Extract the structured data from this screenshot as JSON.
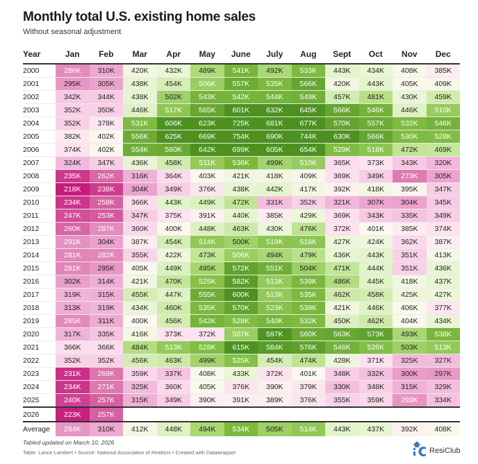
{
  "header": {
    "title": "Monthly total U.S. existing home sales",
    "subtitle": "Without seasonal adjustment"
  },
  "chart_data": {
    "type": "heatmap",
    "title": "Monthly total U.S. existing home sales",
    "subtitle": "Without seasonal adjustment",
    "row_header": "Year",
    "columns": [
      "Jan",
      "Feb",
      "Mar",
      "Apr",
      "May",
      "June",
      "July",
      "Aug",
      "Sept",
      "Oct",
      "Nov",
      "Dec"
    ],
    "unit": "K",
    "color_scale": {
      "low": "#c51b7d",
      "mid": "#fbf8f0",
      "high": "#4d9221",
      "low_value": 220,
      "mid_value": 400,
      "high_value": 600
    },
    "rows": [
      {
        "year": "2000",
        "values": [
          286,
          310,
          420,
          432,
          489,
          541,
          492,
          533,
          443,
          434,
          408,
          385
        ]
      },
      {
        "year": "2001",
        "values": [
          295,
          305,
          438,
          454,
          506,
          557,
          535,
          566,
          420,
          443,
          405,
          409
        ]
      },
      {
        "year": "2002",
        "values": [
          342,
          344,
          438,
          502,
          543,
          542,
          544,
          549,
          457,
          481,
          430,
          459
        ]
      },
      {
        "year": "2003",
        "values": [
          352,
          350,
          446,
          517,
          565,
          601,
          632,
          645,
          566,
          546,
          446,
          510
        ]
      },
      {
        "year": "2004",
        "values": [
          352,
          378,
          531,
          606,
          623,
          725,
          681,
          677,
          570,
          557,
          532,
          546
        ]
      },
      {
        "year": "2005",
        "values": [
          382,
          402,
          556,
          625,
          669,
          754,
          690,
          744,
          630,
          566,
          530,
          528
        ]
      },
      {
        "year": "2006",
        "values": [
          374,
          402,
          554,
          560,
          642,
          699,
          605,
          654,
          529,
          518,
          472,
          469
        ]
      },
      {
        "year": "2007",
        "values": [
          324,
          347,
          436,
          458,
          511,
          536,
          499,
          510,
          365,
          373,
          343,
          320
        ]
      },
      {
        "year": "2008",
        "values": [
          235,
          262,
          316,
          364,
          403,
          421,
          418,
          409,
          369,
          349,
          273,
          305
        ]
      },
      {
        "year": "2009",
        "values": [
          218,
          238,
          304,
          349,
          376,
          438,
          442,
          417,
          392,
          418,
          395,
          347
        ]
      },
      {
        "year": "2010",
        "values": [
          234,
          258,
          366,
          443,
          449,
          472,
          331,
          352,
          321,
          307,
          304,
          345
        ]
      },
      {
        "year": "2011",
        "values": [
          247,
          253,
          347,
          375,
          391,
          440,
          385,
          429,
          369,
          343,
          335,
          349
        ]
      },
      {
        "year": "2012",
        "values": [
          260,
          287,
          360,
          400,
          448,
          463,
          430,
          476,
          372,
          401,
          385,
          374
        ]
      },
      {
        "year": "2013",
        "values": [
          291,
          304,
          387,
          454,
          514,
          500,
          519,
          518,
          427,
          424,
          362,
          387
        ]
      },
      {
        "year": "2014",
        "values": [
          281,
          282,
          355,
          422,
          473,
          506,
          494,
          479,
          436,
          443,
          351,
          413
        ]
      },
      {
        "year": "2015",
        "values": [
          281,
          295,
          405,
          449,
          495,
          572,
          551,
          504,
          471,
          444,
          351,
          436
        ]
      },
      {
        "year": "2016",
        "values": [
          302,
          314,
          421,
          470,
          525,
          582,
          513,
          539,
          486,
          445,
          418,
          437
        ]
      },
      {
        "year": "2017",
        "values": [
          319,
          315,
          455,
          447,
          555,
          600,
          513,
          535,
          462,
          458,
          425,
          427
        ]
      },
      {
        "year": "2018",
        "values": [
          313,
          319,
          434,
          460,
          535,
          570,
          523,
          539,
          421,
          446,
          406,
          377
        ]
      },
      {
        "year": "2019",
        "values": [
          285,
          311,
          400,
          456,
          542,
          528,
          540,
          532,
          450,
          462,
          404,
          434
        ]
      },
      {
        "year": "2020",
        "values": [
          317,
          335,
          416,
          373,
          372,
          507,
          597,
          560,
          563,
          573,
          493,
          538
        ]
      },
      {
        "year": "2021",
        "values": [
          366,
          366,
          484,
          513,
          528,
          615,
          584,
          576,
          546,
          526,
          503,
          513
        ]
      },
      {
        "year": "2022",
        "values": [
          352,
          352,
          456,
          463,
          499,
          525,
          454,
          474,
          428,
          371,
          325,
          327
        ]
      },
      {
        "year": "2023",
        "values": [
          231,
          269,
          359,
          337,
          408,
          433,
          372,
          401,
          348,
          332,
          300,
          297
        ]
      },
      {
        "year": "2024",
        "values": [
          234,
          271,
          325,
          360,
          405,
          376,
          390,
          379,
          330,
          348,
          315,
          329
        ]
      },
      {
        "year": "2025",
        "values": [
          240,
          257,
          315,
          349,
          390,
          391,
          389,
          376,
          355,
          359,
          293,
          334
        ]
      },
      {
        "year": "2026",
        "values": [
          223,
          257,
          null,
          null,
          null,
          null,
          null,
          null,
          null,
          null,
          null,
          null
        ]
      }
    ],
    "average": {
      "label": "Average",
      "values": [
        294,
        310,
        412,
        448,
        494,
        534,
        505,
        514,
        443,
        437,
        392,
        408
      ]
    }
  },
  "footer": {
    "note": "Tabled updated on March 10, 2026",
    "source": "Table: Lance Lambert • Source: National Association of Realtors • Created with Datawrapper",
    "logo_text": "ResiClub"
  }
}
